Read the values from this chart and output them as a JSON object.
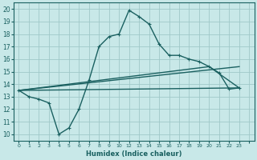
{
  "xlabel": "Humidex (Indice chaleur)",
  "ylabel": "",
  "bg_color": "#c8e8e8",
  "grid_color": "#a0c8c8",
  "line_color": "#1a6060",
  "xlim": [
    -0.5,
    23.5
  ],
  "ylim": [
    9.5,
    20.5
  ],
  "xtick_positions": [
    0,
    1,
    2,
    3,
    4,
    5,
    6,
    7,
    8,
    9,
    10,
    11,
    12,
    13,
    14,
    15,
    16,
    17,
    18,
    19,
    20,
    21,
    22,
    23
  ],
  "xtick_labels": [
    "0",
    "1",
    "2",
    "3",
    "4",
    "5",
    "6",
    "7",
    "8",
    "9",
    "10",
    "12",
    "13",
    "14",
    "15",
    "16",
    "17",
    "18",
    "19",
    "20",
    "21",
    "22",
    "23",
    ""
  ],
  "yticks": [
    10,
    11,
    12,
    13,
    14,
    15,
    16,
    17,
    18,
    19,
    20
  ],
  "line1_x": [
    0,
    1,
    2,
    3,
    4,
    5,
    6,
    7,
    8,
    9,
    10,
    11,
    12,
    13,
    14,
    15,
    16,
    17,
    18,
    19,
    20,
    21,
    22
  ],
  "line1_y": [
    13.5,
    13.0,
    12.8,
    12.5,
    10.0,
    10.5,
    12.0,
    14.3,
    17.0,
    17.8,
    18.0,
    19.9,
    19.4,
    18.8,
    17.2,
    16.3,
    16.3,
    16.0,
    15.8,
    15.4,
    14.9,
    13.6,
    13.7
  ],
  "line2_x": [
    0,
    22
  ],
  "line2_y": [
    13.5,
    13.7
  ],
  "line3_x": [
    0,
    22
  ],
  "line3_y": [
    13.5,
    15.4
  ],
  "line4_x": [
    0,
    19,
    22
  ],
  "line4_y": [
    13.5,
    15.4,
    13.7
  ]
}
